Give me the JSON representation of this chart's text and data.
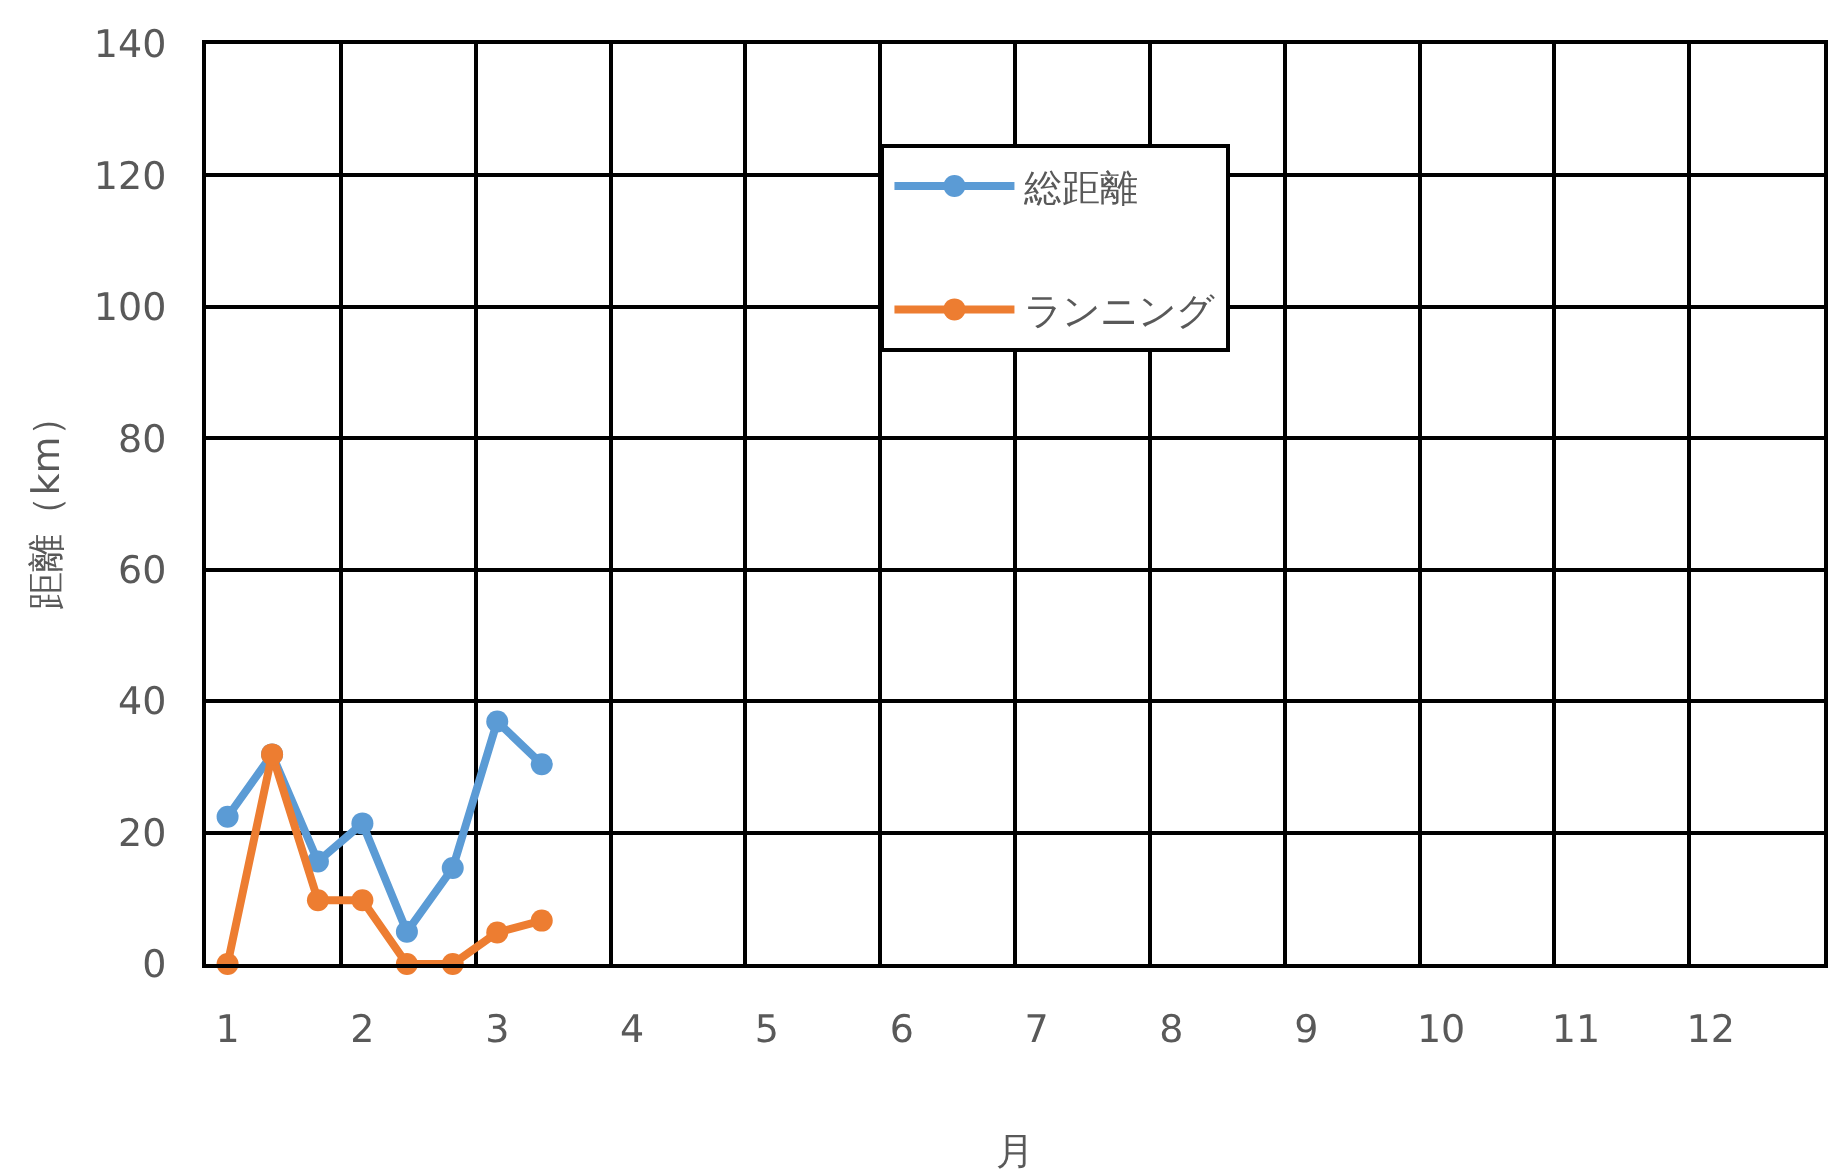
{
  "chart_data": {
    "type": "line",
    "xlabel": "月",
    "ylabel": "距離（km）",
    "x": [
      1,
      1.33,
      1.67,
      2,
      2.33,
      2.67,
      3,
      3.33
    ],
    "xlim": [
      0.84,
      12.84
    ],
    "xticks": [
      1,
      2,
      3,
      4,
      5,
      6,
      7,
      8,
      9,
      10,
      11,
      12,
      {
        "value": 1.84,
        "label": null
      },
      {
        "value": 2.84,
        "label": null
      },
      {
        "value": 3.84,
        "label": null
      },
      {
        "value": 4.84,
        "label": null
      },
      {
        "value": 5.84,
        "label": null
      },
      {
        "value": 6.84,
        "label": null
      },
      {
        "value": 7.84,
        "label": null
      },
      {
        "value": 8.84,
        "label": null
      },
      {
        "value": 9.84,
        "label": null
      },
      {
        "value": 10.84,
        "label": null
      },
      {
        "value": 11.84,
        "label": null
      }
    ],
    "ylim": [
      0,
      140
    ],
    "yticks": [
      0,
      20,
      40,
      60,
      80,
      100,
      120,
      140
    ],
    "series": [
      {
        "name": "総距離",
        "color": "#5b9bd5",
        "values": [
          22.4,
          31.9,
          15.6,
          21.4,
          4.9,
          14.6,
          36.9,
          30.4
        ]
      },
      {
        "name": "ランニング",
        "color": "#ed7d31",
        "values": [
          0,
          31.9,
          9.7,
          9.7,
          0,
          0,
          4.8,
          6.6
        ]
      }
    ],
    "grid": true,
    "legend": "top",
    "marker": "circle",
    "line_style": "solid"
  }
}
